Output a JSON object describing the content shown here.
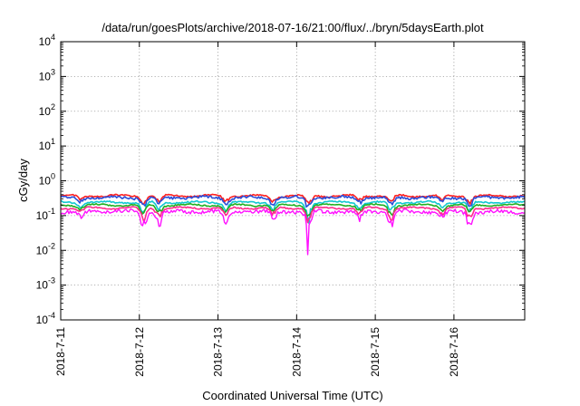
{
  "chart_data": {
    "type": "line",
    "title": "/data/run/goesPlots/archive/2018-07-16/21:00/flux/../bryn/5daysEarth.plot",
    "xlabel": "Coordinated Universal Time (UTC)",
    "ylabel": "cGy/day",
    "yscale": "log",
    "ylim_exponents": [
      -4,
      4
    ],
    "y_tick_base": "10",
    "y_tick_exponents": [
      "-4",
      "-3",
      "-2",
      "-1",
      "0",
      "1",
      "2",
      "3",
      "4"
    ],
    "xlim_days": [
      0,
      5.9
    ],
    "x_tick_labels": [
      "2018-7-11",
      "2018-7-12",
      "2018-7-13",
      "2018-7-14",
      "2018-7-15",
      "2018-7-16"
    ],
    "x_tick_days": [
      0,
      1,
      2,
      3,
      4,
      5
    ],
    "grid": true,
    "grid_style": "dotted",
    "series": [
      {
        "name": "series-red",
        "color": "#ff2020",
        "base": 0.37,
        "dip_depth": 0.55,
        "noise": 0.05
      },
      {
        "name": "series-blue",
        "color": "#2a4dd8",
        "base": 0.33,
        "dip_depth": 0.6,
        "noise": 0.08
      },
      {
        "name": "series-cyan",
        "color": "#12c8d0",
        "base": 0.24,
        "dip_depth": 0.65,
        "noise": 0.05
      },
      {
        "name": "series-green",
        "color": "#20b020",
        "base": 0.2,
        "dip_depth": 0.65,
        "noise": 0.04
      },
      {
        "name": "series-pink",
        "color": "#ff2a8a",
        "base": 0.165,
        "dip_depth": 0.7,
        "noise": 0.04
      },
      {
        "name": "series-magenta",
        "color": "#ff10ff",
        "base": 0.13,
        "dip_depth": 0.85,
        "noise": 0.12
      }
    ],
    "dips": [
      {
        "day": 0.25,
        "depth": 0.35
      },
      {
        "day": 1.05,
        "depth": 0.75
      },
      {
        "day": 1.25,
        "depth": 0.6
      },
      {
        "day": 2.1,
        "depth": 0.55
      },
      {
        "day": 2.7,
        "depth": 0.5
      },
      {
        "day": 3.15,
        "depth": 0.9
      },
      {
        "day": 3.8,
        "depth": 0.45
      },
      {
        "day": 4.2,
        "depth": 0.7
      },
      {
        "day": 4.85,
        "depth": 0.4
      },
      {
        "day": 5.2,
        "depth": 0.65
      }
    ]
  }
}
